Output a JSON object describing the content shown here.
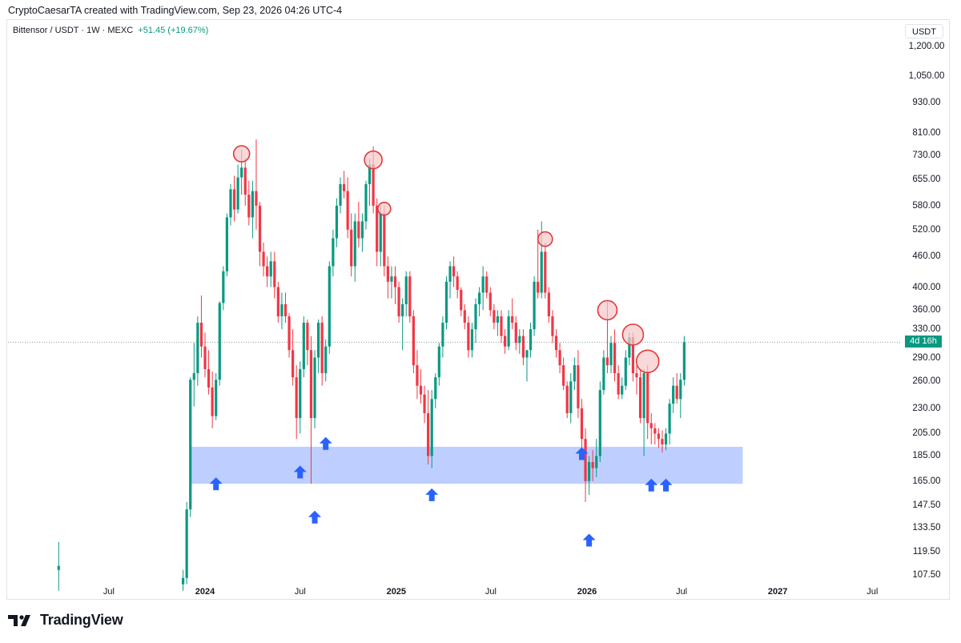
{
  "header": {
    "text": "CryptoCaesarTA created with TradingView.com, Sep 23, 2026 04:26 UTC-4"
  },
  "legend": {
    "symbol": "Bittensor / USDT · 1W · MEXC",
    "change": "+51.45 (+19.67%)"
  },
  "axis": {
    "currency": "USDT",
    "y_ticks": [
      "1,200.00",
      "1,050.00",
      "930.00",
      "810.00",
      "730.00",
      "655.00",
      "580.00",
      "520.00",
      "460.00",
      "400.00",
      "360.00",
      "330.00",
      "290.00",
      "260.00",
      "230.00",
      "205.00",
      "185.00",
      "165.00",
      "147.50",
      "133.50",
      "119.50",
      "107.50"
    ],
    "x_ticks": [
      {
        "label": "Jul",
        "bold": false
      },
      {
        "label": "2024",
        "bold": true
      },
      {
        "label": "Jul",
        "bold": false
      },
      {
        "label": "2025",
        "bold": true
      },
      {
        "label": "Jul",
        "bold": false
      },
      {
        "label": "2026",
        "bold": true
      },
      {
        "label": "Jul",
        "bold": false
      },
      {
        "label": "2027",
        "bold": true
      },
      {
        "label": "Jul",
        "bold": false
      }
    ],
    "current_price_countdown": "4d 16h"
  },
  "colors": {
    "up": "#089981",
    "down": "#f23645",
    "zone": "#b3c7ff",
    "arrow": "#2962ff",
    "circle": "#e5383b"
  },
  "footer": {
    "brand": "TradingView"
  },
  "chart_data": {
    "type": "candlestick",
    "scale": "log",
    "ylim": [
      100,
      1300
    ],
    "support_zone": {
      "low": 163,
      "high": 193,
      "from": "2023-12-04",
      "to": "2026-10-26"
    },
    "current_price": 311,
    "resistance_circles_at_price": [
      735,
      715,
      572,
      498,
      360,
      322,
      285
    ],
    "support_arrows_at_price": [
      163,
      172,
      196,
      140,
      155,
      187,
      162,
      162,
      126
    ],
    "candles": [
      {
        "x": "2023-03-27",
        "o": 110,
        "h": 125,
        "l": 100,
        "c": 112
      },
      {
        "x": "2023-11-20",
        "o": 103,
        "h": 110,
        "l": 100,
        "c": 106
      },
      {
        "x": "2023-11-27",
        "o": 106,
        "h": 150,
        "l": 103,
        "c": 145
      },
      {
        "x": "2023-12-04",
        "o": 145,
        "h": 265,
        "l": 140,
        "c": 262
      },
      {
        "x": "2023-12-11",
        "o": 262,
        "h": 310,
        "l": 232,
        "c": 270
      },
      {
        "x": "2023-12-18",
        "o": 270,
        "h": 350,
        "l": 255,
        "c": 340
      },
      {
        "x": "2023-12-25",
        "o": 340,
        "h": 385,
        "l": 290,
        "c": 305
      },
      {
        "x": "2024-01-01",
        "o": 305,
        "h": 325,
        "l": 265,
        "c": 275
      },
      {
        "x": "2024-01-08",
        "o": 275,
        "h": 300,
        "l": 245,
        "c": 253
      },
      {
        "x": "2024-01-15",
        "o": 253,
        "h": 272,
        "l": 210,
        "c": 222
      },
      {
        "x": "2024-01-22",
        "o": 222,
        "h": 270,
        "l": 218,
        "c": 262
      },
      {
        "x": "2024-01-29",
        "o": 262,
        "h": 375,
        "l": 255,
        "c": 372
      },
      {
        "x": "2024-02-05",
        "o": 372,
        "h": 440,
        "l": 360,
        "c": 430
      },
      {
        "x": "2024-02-12",
        "o": 430,
        "h": 560,
        "l": 420,
        "c": 550
      },
      {
        "x": "2024-02-19",
        "o": 550,
        "h": 640,
        "l": 530,
        "c": 625
      },
      {
        "x": "2024-02-26",
        "o": 625,
        "h": 665,
        "l": 540,
        "c": 570
      },
      {
        "x": "2024-03-04",
        "o": 570,
        "h": 700,
        "l": 560,
        "c": 660
      },
      {
        "x": "2024-03-11",
        "o": 660,
        "h": 750,
        "l": 610,
        "c": 690
      },
      {
        "x": "2024-03-18",
        "o": 690,
        "h": 720,
        "l": 580,
        "c": 610
      },
      {
        "x": "2024-03-25",
        "o": 610,
        "h": 650,
        "l": 530,
        "c": 550
      },
      {
        "x": "2024-04-01",
        "o": 550,
        "h": 650,
        "l": 500,
        "c": 620
      },
      {
        "x": "2024-04-08",
        "o": 620,
        "h": 785,
        "l": 520,
        "c": 580
      },
      {
        "x": "2024-04-15",
        "o": 580,
        "h": 590,
        "l": 440,
        "c": 470
      },
      {
        "x": "2024-04-22",
        "o": 470,
        "h": 490,
        "l": 420,
        "c": 440
      },
      {
        "x": "2024-04-29",
        "o": 440,
        "h": 460,
        "l": 400,
        "c": 420
      },
      {
        "x": "2024-05-06",
        "o": 420,
        "h": 470,
        "l": 400,
        "c": 450
      },
      {
        "x": "2024-05-13",
        "o": 450,
        "h": 470,
        "l": 380,
        "c": 400
      },
      {
        "x": "2024-05-20",
        "o": 400,
        "h": 410,
        "l": 340,
        "c": 350
      },
      {
        "x": "2024-05-27",
        "o": 350,
        "h": 390,
        "l": 330,
        "c": 370
      },
      {
        "x": "2024-06-03",
        "o": 370,
        "h": 390,
        "l": 340,
        "c": 350
      },
      {
        "x": "2024-06-10",
        "o": 350,
        "h": 355,
        "l": 290,
        "c": 300
      },
      {
        "x": "2024-06-17",
        "o": 300,
        "h": 330,
        "l": 255,
        "c": 265
      },
      {
        "x": "2024-06-24",
        "o": 265,
        "h": 280,
        "l": 200,
        "c": 220
      },
      {
        "x": "2024-07-01",
        "o": 220,
        "h": 285,
        "l": 205,
        "c": 275
      },
      {
        "x": "2024-07-08",
        "o": 275,
        "h": 350,
        "l": 265,
        "c": 340
      },
      {
        "x": "2024-07-15",
        "o": 340,
        "h": 345,
        "l": 280,
        "c": 300
      },
      {
        "x": "2024-07-22",
        "o": 300,
        "h": 320,
        "l": 163,
        "c": 220
      },
      {
        "x": "2024-07-29",
        "o": 220,
        "h": 300,
        "l": 210,
        "c": 290
      },
      {
        "x": "2024-08-05",
        "o": 290,
        "h": 345,
        "l": 270,
        "c": 340
      },
      {
        "x": "2024-08-12",
        "o": 340,
        "h": 350,
        "l": 255,
        "c": 270
      },
      {
        "x": "2024-08-19",
        "o": 270,
        "h": 315,
        "l": 260,
        "c": 305
      },
      {
        "x": "2024-08-26",
        "o": 305,
        "h": 450,
        "l": 295,
        "c": 440
      },
      {
        "x": "2024-09-02",
        "o": 440,
        "h": 520,
        "l": 420,
        "c": 500
      },
      {
        "x": "2024-09-09",
        "o": 500,
        "h": 600,
        "l": 480,
        "c": 580
      },
      {
        "x": "2024-09-16",
        "o": 580,
        "h": 660,
        "l": 560,
        "c": 640
      },
      {
        "x": "2024-09-23",
        "o": 640,
        "h": 680,
        "l": 600,
        "c": 620
      },
      {
        "x": "2024-09-30",
        "o": 620,
        "h": 660,
        "l": 500,
        "c": 520
      },
      {
        "x": "2024-10-07",
        "o": 520,
        "h": 560,
        "l": 420,
        "c": 440
      },
      {
        "x": "2024-10-14",
        "o": 440,
        "h": 560,
        "l": 410,
        "c": 540
      },
      {
        "x": "2024-10-21",
        "o": 540,
        "h": 590,
        "l": 480,
        "c": 500
      },
      {
        "x": "2024-10-28",
        "o": 500,
        "h": 560,
        "l": 470,
        "c": 540
      },
      {
        "x": "2024-11-04",
        "o": 540,
        "h": 650,
        "l": 520,
        "c": 640
      },
      {
        "x": "2024-11-11",
        "o": 640,
        "h": 720,
        "l": 580,
        "c": 700
      },
      {
        "x": "2024-11-18",
        "o": 700,
        "h": 760,
        "l": 560,
        "c": 580
      },
      {
        "x": "2024-11-25",
        "o": 580,
        "h": 600,
        "l": 440,
        "c": 470
      },
      {
        "x": "2024-12-02",
        "o": 470,
        "h": 580,
        "l": 440,
        "c": 560
      },
      {
        "x": "2024-12-09",
        "o": 560,
        "h": 580,
        "l": 420,
        "c": 440
      },
      {
        "x": "2024-12-16",
        "o": 440,
        "h": 460,
        "l": 380,
        "c": 410
      },
      {
        "x": "2024-12-23",
        "o": 410,
        "h": 440,
        "l": 380,
        "c": 420
      },
      {
        "x": "2024-12-30",
        "o": 420,
        "h": 440,
        "l": 370,
        "c": 400
      },
      {
        "x": "2025-01-06",
        "o": 400,
        "h": 410,
        "l": 340,
        "c": 350
      },
      {
        "x": "2025-01-13",
        "o": 350,
        "h": 380,
        "l": 300,
        "c": 370
      },
      {
        "x": "2025-01-20",
        "o": 370,
        "h": 430,
        "l": 350,
        "c": 420
      },
      {
        "x": "2025-01-27",
        "o": 420,
        "h": 430,
        "l": 340,
        "c": 350
      },
      {
        "x": "2025-02-03",
        "o": 350,
        "h": 360,
        "l": 270,
        "c": 280
      },
      {
        "x": "2025-02-10",
        "o": 280,
        "h": 300,
        "l": 240,
        "c": 255
      },
      {
        "x": "2025-02-17",
        "o": 255,
        "h": 275,
        "l": 235,
        "c": 245
      },
      {
        "x": "2025-02-24",
        "o": 245,
        "h": 255,
        "l": 215,
        "c": 225
      },
      {
        "x": "2025-03-03",
        "o": 225,
        "h": 250,
        "l": 178,
        "c": 185
      },
      {
        "x": "2025-03-10",
        "o": 185,
        "h": 250,
        "l": 175,
        "c": 240
      },
      {
        "x": "2025-03-17",
        "o": 240,
        "h": 270,
        "l": 230,
        "c": 265
      },
      {
        "x": "2025-03-24",
        "o": 265,
        "h": 310,
        "l": 255,
        "c": 305
      },
      {
        "x": "2025-03-31",
        "o": 305,
        "h": 350,
        "l": 290,
        "c": 340
      },
      {
        "x": "2025-04-07",
        "o": 340,
        "h": 420,
        "l": 330,
        "c": 410
      },
      {
        "x": "2025-04-14",
        "o": 410,
        "h": 450,
        "l": 380,
        "c": 440
      },
      {
        "x": "2025-04-21",
        "o": 440,
        "h": 460,
        "l": 400,
        "c": 420
      },
      {
        "x": "2025-04-28",
        "o": 420,
        "h": 430,
        "l": 380,
        "c": 395
      },
      {
        "x": "2025-05-05",
        "o": 395,
        "h": 400,
        "l": 350,
        "c": 360
      },
      {
        "x": "2025-05-12",
        "o": 360,
        "h": 370,
        "l": 330,
        "c": 340
      },
      {
        "x": "2025-05-19",
        "o": 340,
        "h": 350,
        "l": 290,
        "c": 300
      },
      {
        "x": "2025-05-26",
        "o": 300,
        "h": 340,
        "l": 290,
        "c": 330
      },
      {
        "x": "2025-06-02",
        "o": 330,
        "h": 380,
        "l": 310,
        "c": 370
      },
      {
        "x": "2025-06-09",
        "o": 370,
        "h": 400,
        "l": 350,
        "c": 390
      },
      {
        "x": "2025-06-16",
        "o": 390,
        "h": 440,
        "l": 360,
        "c": 420
      },
      {
        "x": "2025-06-23",
        "o": 420,
        "h": 430,
        "l": 380,
        "c": 390
      },
      {
        "x": "2025-06-30",
        "o": 390,
        "h": 400,
        "l": 350,
        "c": 360
      },
      {
        "x": "2025-07-07",
        "o": 360,
        "h": 370,
        "l": 330,
        "c": 340
      },
      {
        "x": "2025-07-14",
        "o": 340,
        "h": 360,
        "l": 320,
        "c": 350
      },
      {
        "x": "2025-07-21",
        "o": 350,
        "h": 360,
        "l": 310,
        "c": 320
      },
      {
        "x": "2025-07-28",
        "o": 320,
        "h": 330,
        "l": 295,
        "c": 305
      },
      {
        "x": "2025-08-04",
        "o": 305,
        "h": 360,
        "l": 300,
        "c": 350
      },
      {
        "x": "2025-08-11",
        "o": 350,
        "h": 380,
        "l": 330,
        "c": 340
      },
      {
        "x": "2025-08-18",
        "o": 340,
        "h": 350,
        "l": 300,
        "c": 310
      },
      {
        "x": "2025-08-25",
        "o": 310,
        "h": 330,
        "l": 295,
        "c": 320
      },
      {
        "x": "2025-09-01",
        "o": 320,
        "h": 330,
        "l": 280,
        "c": 290
      },
      {
        "x": "2025-09-08",
        "o": 290,
        "h": 300,
        "l": 260,
        "c": 300
      },
      {
        "x": "2025-09-15",
        "o": 300,
        "h": 340,
        "l": 290,
        "c": 330
      },
      {
        "x": "2025-09-22",
        "o": 330,
        "h": 420,
        "l": 320,
        "c": 410
      },
      {
        "x": "2025-09-29",
        "o": 410,
        "h": 520,
        "l": 380,
        "c": 390
      },
      {
        "x": "2025-10-06",
        "o": 390,
        "h": 540,
        "l": 380,
        "c": 470
      },
      {
        "x": "2025-10-13",
        "o": 470,
        "h": 490,
        "l": 380,
        "c": 390
      },
      {
        "x": "2025-10-20",
        "o": 390,
        "h": 400,
        "l": 340,
        "c": 350
      },
      {
        "x": "2025-10-27",
        "o": 350,
        "h": 360,
        "l": 310,
        "c": 320
      },
      {
        "x": "2025-11-03",
        "o": 320,
        "h": 330,
        "l": 290,
        "c": 300
      },
      {
        "x": "2025-11-10",
        "o": 300,
        "h": 310,
        "l": 270,
        "c": 280
      },
      {
        "x": "2025-11-17",
        "o": 280,
        "h": 290,
        "l": 250,
        "c": 255
      },
      {
        "x": "2025-11-24",
        "o": 255,
        "h": 260,
        "l": 220,
        "c": 225
      },
      {
        "x": "2025-12-01",
        "o": 225,
        "h": 270,
        "l": 215,
        "c": 260
      },
      {
        "x": "2025-12-08",
        "o": 260,
        "h": 290,
        "l": 250,
        "c": 280
      },
      {
        "x": "2025-12-15",
        "o": 280,
        "h": 300,
        "l": 220,
        "c": 230
      },
      {
        "x": "2025-12-22",
        "o": 230,
        "h": 240,
        "l": 190,
        "c": 200
      },
      {
        "x": "2025-12-29",
        "o": 200,
        "h": 210,
        "l": 150,
        "c": 165
      },
      {
        "x": "2026-01-05",
        "o": 165,
        "h": 185,
        "l": 155,
        "c": 180
      },
      {
        "x": "2026-01-12",
        "o": 180,
        "h": 190,
        "l": 165,
        "c": 175
      },
      {
        "x": "2026-01-19",
        "o": 175,
        "h": 200,
        "l": 168,
        "c": 185
      },
      {
        "x": "2026-01-26",
        "o": 185,
        "h": 260,
        "l": 180,
        "c": 250
      },
      {
        "x": "2026-02-02",
        "o": 250,
        "h": 300,
        "l": 245,
        "c": 290
      },
      {
        "x": "2026-02-09",
        "o": 290,
        "h": 375,
        "l": 270,
        "c": 280
      },
      {
        "x": "2026-02-16",
        "o": 280,
        "h": 320,
        "l": 270,
        "c": 310
      },
      {
        "x": "2026-02-23",
        "o": 310,
        "h": 330,
        "l": 260,
        "c": 270
      },
      {
        "x": "2026-03-02",
        "o": 270,
        "h": 280,
        "l": 240,
        "c": 245
      },
      {
        "x": "2026-03-09",
        "o": 245,
        "h": 265,
        "l": 240,
        "c": 255
      },
      {
        "x": "2026-03-16",
        "o": 255,
        "h": 300,
        "l": 250,
        "c": 290
      },
      {
        "x": "2026-03-23",
        "o": 290,
        "h": 325,
        "l": 280,
        "c": 318
      },
      {
        "x": "2026-03-30",
        "o": 318,
        "h": 325,
        "l": 260,
        "c": 270
      },
      {
        "x": "2026-04-06",
        "o": 270,
        "h": 280,
        "l": 245,
        "c": 265
      },
      {
        "x": "2026-04-13",
        "o": 265,
        "h": 275,
        "l": 215,
        "c": 220
      },
      {
        "x": "2026-04-20",
        "o": 220,
        "h": 275,
        "l": 185,
        "c": 270
      },
      {
        "x": "2026-04-27",
        "o": 270,
        "h": 280,
        "l": 200,
        "c": 215
      },
      {
        "x": "2026-05-04",
        "o": 215,
        "h": 225,
        "l": 195,
        "c": 210
      },
      {
        "x": "2026-05-11",
        "o": 210,
        "h": 215,
        "l": 195,
        "c": 205
      },
      {
        "x": "2026-05-18",
        "o": 205,
        "h": 210,
        "l": 192,
        "c": 200
      },
      {
        "x": "2026-05-25",
        "o": 200,
        "h": 208,
        "l": 188,
        "c": 195
      },
      {
        "x": "2026-06-01",
        "o": 195,
        "h": 210,
        "l": 190,
        "c": 205
      },
      {
        "x": "2026-06-08",
        "o": 205,
        "h": 240,
        "l": 195,
        "c": 235
      },
      {
        "x": "2026-06-15",
        "o": 235,
        "h": 265,
        "l": 225,
        "c": 255
      },
      {
        "x": "2026-06-22",
        "o": 255,
        "h": 270,
        "l": 235,
        "c": 240
      },
      {
        "x": "2026-06-29",
        "o": 240,
        "h": 270,
        "l": 220,
        "c": 262
      },
      {
        "x": "2026-07-06",
        "o": 262,
        "h": 320,
        "l": 255,
        "c": 311
      }
    ]
  }
}
